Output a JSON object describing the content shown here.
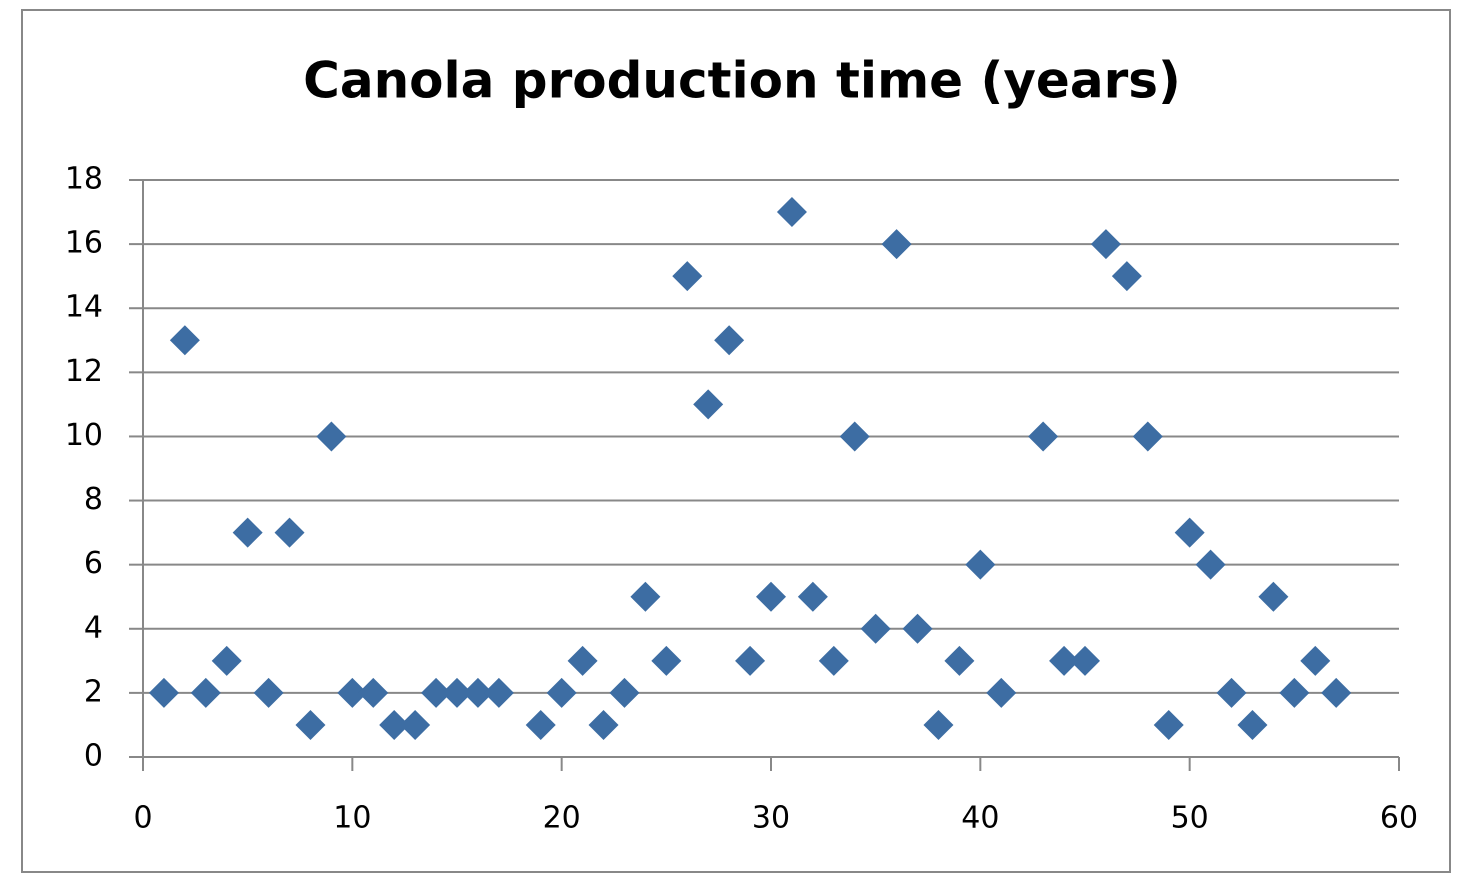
{
  "chart_data": {
    "type": "scatter",
    "title": "Canola production time (years)",
    "x": [
      1,
      2,
      3,
      4,
      5,
      6,
      7,
      8,
      9,
      10,
      11,
      12,
      13,
      14,
      15,
      16,
      17,
      19,
      20,
      21,
      22,
      23,
      24,
      25,
      26,
      27,
      28,
      29,
      30,
      31,
      32,
      33,
      34,
      35,
      36,
      37,
      38,
      39,
      40,
      41,
      43,
      44,
      45,
      46,
      47,
      48,
      49,
      50,
      51,
      52,
      53,
      54,
      55,
      56,
      57
    ],
    "values": [
      2,
      13,
      2,
      3,
      7,
      2,
      7,
      1,
      10,
      2,
      2,
      1,
      1,
      2,
      2,
      2,
      2,
      1,
      2,
      3,
      1,
      2,
      5,
      3,
      15,
      11,
      13,
      3,
      5,
      17,
      5,
      3,
      10,
      4,
      16,
      4,
      1,
      3,
      6,
      2,
      10,
      3,
      3,
      16,
      15,
      10,
      1,
      7,
      6,
      2,
      1,
      5,
      2,
      3,
      2
    ],
    "color": "#3d6da3",
    "xlim": [
      0,
      60
    ],
    "xticks": [
      0,
      10,
      20,
      30,
      40,
      50,
      60
    ],
    "ylim": [
      0,
      18
    ],
    "yticks": [
      0,
      2,
      4,
      6,
      8,
      10,
      12,
      14,
      16,
      18
    ],
    "grid": true
  }
}
